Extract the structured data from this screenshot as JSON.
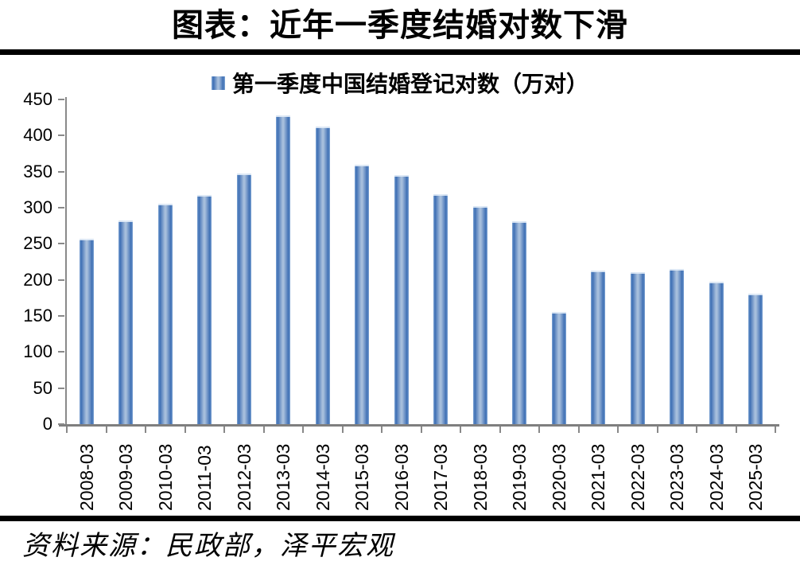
{
  "page": {
    "title": "图表：近年一季度结婚对数下滑",
    "source": "资料来源：民政部，泽平宏观"
  },
  "chart_data": {
    "type": "bar",
    "title": "图表：近年一季度结婚对数下滑",
    "legend": "第一季度中国结婚登记对数（万对）",
    "legend_position": "top-center",
    "categories": [
      "2008-03",
      "2009-03",
      "2010-03",
      "2011-03",
      "2012-03",
      "2013-03",
      "2014-03",
      "2015-03",
      "2016-03",
      "2017-03",
      "2018-03",
      "2019-03",
      "2020-03",
      "2021-03",
      "2022-03",
      "2023-03",
      "2024-03",
      "2025-03"
    ],
    "values": [
      257,
      282,
      305,
      318,
      347,
      428,
      413,
      360,
      345,
      319,
      302,
      281,
      156,
      213,
      211,
      215,
      197,
      181
    ],
    "unit": "万对",
    "ylim": [
      0,
      450
    ],
    "yticks": [
      0,
      50,
      100,
      150,
      200,
      250,
      300,
      350,
      400,
      450
    ],
    "grid": false,
    "colors": {
      "bar_main": "#4F81BD",
      "bar_edge": "#3E6FB4",
      "bar_center": "#A6BEDC",
      "axis": "#898989",
      "text": "#000000",
      "rule": "#000000"
    }
  }
}
